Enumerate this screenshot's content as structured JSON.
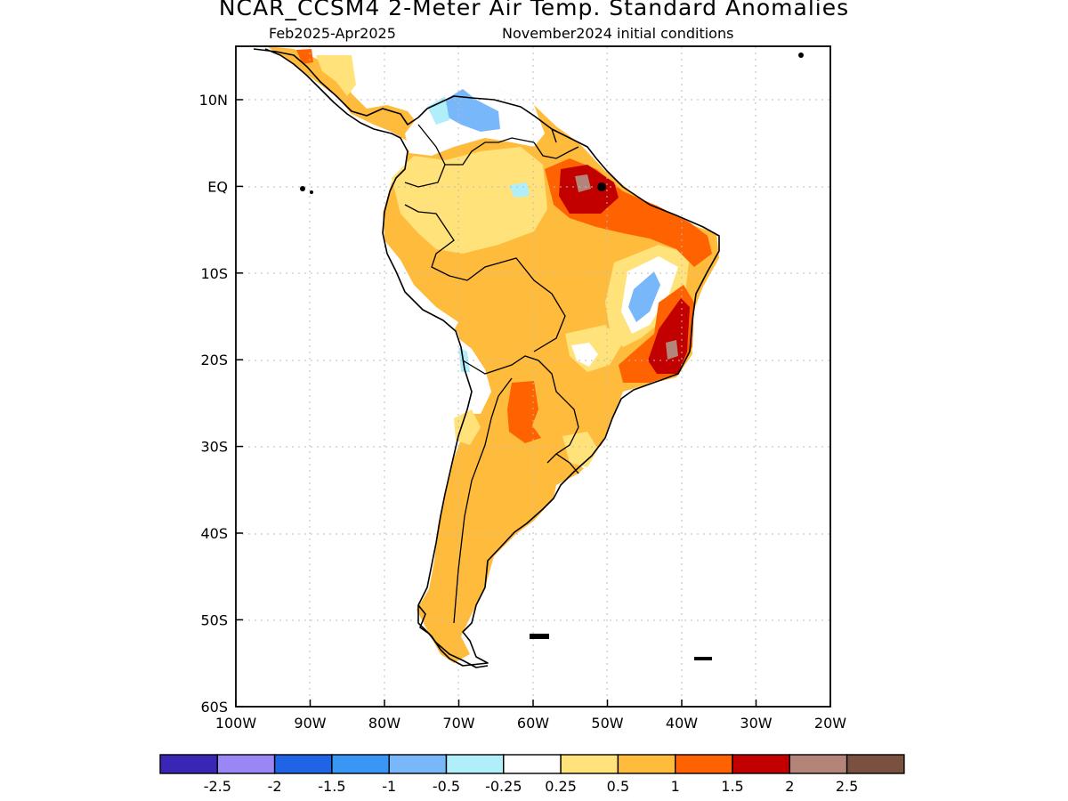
{
  "header": {
    "title": "NCAR_CCSM4 2-Meter Air Temp. Standard Anomalies",
    "period": "Feb2025-Apr2025",
    "init": "November2024 initial conditions"
  },
  "map": {
    "lat_labels": [
      "10N",
      "EQ",
      "10S",
      "20S",
      "30S",
      "40S",
      "50S",
      "60S"
    ],
    "lon_labels": [
      "100W",
      "90W",
      "80W",
      "70W",
      "60W",
      "50W",
      "40W",
      "30W",
      "20W"
    ],
    "lat_range": [
      -60,
      15
    ],
    "lon_range": [
      -100,
      -20
    ]
  },
  "colorbar": {
    "colors": [
      "#3a26b5",
      "#9a87f5",
      "#1f63e6",
      "#3a96f5",
      "#78b8fa",
      "#b0eefa",
      "#ffffff",
      "#ffe27a",
      "#ffbb3c",
      "#ff6200",
      "#c20000",
      "#b48478",
      "#7a5040"
    ],
    "labels": [
      "-2.5",
      "-2",
      "-1.5",
      "-1",
      "-0.5",
      "-0.25",
      "0.25",
      "0.5",
      "1",
      "1.5",
      "2",
      "2.5"
    ]
  }
}
